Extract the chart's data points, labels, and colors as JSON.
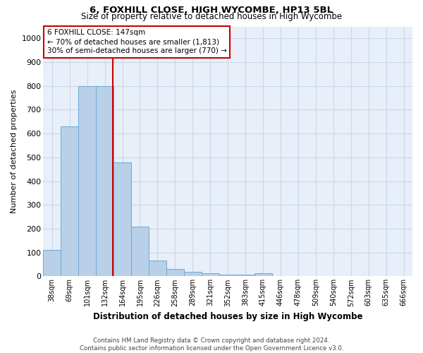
{
  "title1": "6, FOXHILL CLOSE, HIGH WYCOMBE, HP13 5BL",
  "title2": "Size of property relative to detached houses in High Wycombe",
  "xlabel": "Distribution of detached houses by size in High Wycombe",
  "ylabel": "Number of detached properties",
  "footer1": "Contains HM Land Registry data © Crown copyright and database right 2024.",
  "footer2": "Contains public sector information licensed under the Open Government Licence v3.0.",
  "annotation_line1": "6 FOXHILL CLOSE: 147sqm",
  "annotation_line2": "← 70% of detached houses are smaller (1,813)",
  "annotation_line3": "30% of semi-detached houses are larger (770) →",
  "bar_color": "#b8d0e8",
  "bar_edge_color": "#6aaad4",
  "marker_color": "#cc0000",
  "categories": [
    "38sqm",
    "69sqm",
    "101sqm",
    "132sqm",
    "164sqm",
    "195sqm",
    "226sqm",
    "258sqm",
    "289sqm",
    "321sqm",
    "352sqm",
    "383sqm",
    "415sqm",
    "446sqm",
    "478sqm",
    "509sqm",
    "540sqm",
    "572sqm",
    "603sqm",
    "635sqm",
    "666sqm"
  ],
  "values": [
    110,
    630,
    800,
    800,
    480,
    210,
    65,
    30,
    20,
    12,
    8,
    8,
    12,
    0,
    0,
    0,
    0,
    0,
    0,
    0,
    0
  ],
  "ylim": [
    0,
    1050
  ],
  "yticks": [
    0,
    100,
    200,
    300,
    400,
    500,
    600,
    700,
    800,
    900,
    1000
  ],
  "grid_color": "#c8d8ec",
  "background_color": "#e8eff8"
}
